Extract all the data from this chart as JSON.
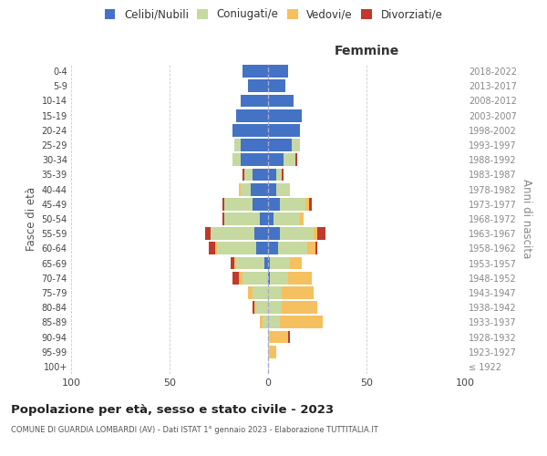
{
  "age_groups": [
    "100+",
    "95-99",
    "90-94",
    "85-89",
    "80-84",
    "75-79",
    "70-74",
    "65-69",
    "60-64",
    "55-59",
    "50-54",
    "45-49",
    "40-44",
    "35-39",
    "30-34",
    "25-29",
    "20-24",
    "15-19",
    "10-14",
    "5-9",
    "0-4"
  ],
  "birth_years": [
    "≤ 1922",
    "1923-1927",
    "1928-1932",
    "1933-1937",
    "1938-1942",
    "1943-1947",
    "1948-1952",
    "1953-1957",
    "1958-1962",
    "1963-1967",
    "1968-1972",
    "1973-1977",
    "1978-1982",
    "1983-1987",
    "1988-1992",
    "1993-1997",
    "1998-2002",
    "2003-2007",
    "2008-2012",
    "2013-2017",
    "2018-2022"
  ],
  "males": {
    "celibi": [
      0,
      0,
      0,
      0,
      0,
      0,
      0,
      2,
      6,
      7,
      4,
      8,
      9,
      8,
      14,
      14,
      18,
      16,
      14,
      10,
      13
    ],
    "coniugati": [
      0,
      0,
      0,
      3,
      6,
      8,
      13,
      14,
      20,
      22,
      18,
      14,
      5,
      4,
      4,
      3,
      0,
      0,
      0,
      0,
      0
    ],
    "vedovi": [
      0,
      0,
      0,
      1,
      1,
      2,
      2,
      1,
      1,
      0,
      0,
      0,
      1,
      0,
      0,
      0,
      0,
      0,
      0,
      0,
      0
    ],
    "divorziati": [
      0,
      0,
      0,
      0,
      1,
      0,
      3,
      2,
      3,
      3,
      1,
      1,
      0,
      1,
      0,
      0,
      0,
      0,
      0,
      0,
      0
    ]
  },
  "females": {
    "nubili": [
      0,
      0,
      0,
      0,
      0,
      0,
      1,
      1,
      5,
      6,
      3,
      6,
      4,
      4,
      8,
      12,
      16,
      17,
      13,
      9,
      10
    ],
    "coniugate": [
      0,
      1,
      1,
      6,
      7,
      7,
      9,
      10,
      15,
      17,
      13,
      13,
      7,
      3,
      6,
      4,
      0,
      0,
      0,
      0,
      0
    ],
    "vedove": [
      0,
      3,
      9,
      22,
      18,
      16,
      12,
      6,
      4,
      2,
      2,
      2,
      0,
      0,
      0,
      0,
      0,
      0,
      0,
      0,
      0
    ],
    "divorziate": [
      0,
      0,
      1,
      0,
      0,
      0,
      0,
      0,
      1,
      4,
      0,
      1,
      0,
      1,
      1,
      0,
      0,
      0,
      0,
      0,
      0
    ]
  },
  "colors": {
    "celibi_nubili": "#4472C4",
    "coniugati": "#C5D9A0",
    "vedovi": "#F5C060",
    "divorziati": "#C0392B"
  },
  "title": "Popolazione per età, sesso e stato civile - 2023",
  "subtitle": "COMUNE DI GUARDIA LOMBARDI (AV) - Dati ISTAT 1° gennaio 2023 - Elaborazione TUTTITALIA.IT",
  "ylabel_left": "Fasce di età",
  "ylabel_right": "Anni di nascita",
  "xlabel_right": "Femmine",
  "xlim": 100,
  "background_color": "#ffffff",
  "grid_color": "#cccccc",
  "bar_height": 0.85
}
